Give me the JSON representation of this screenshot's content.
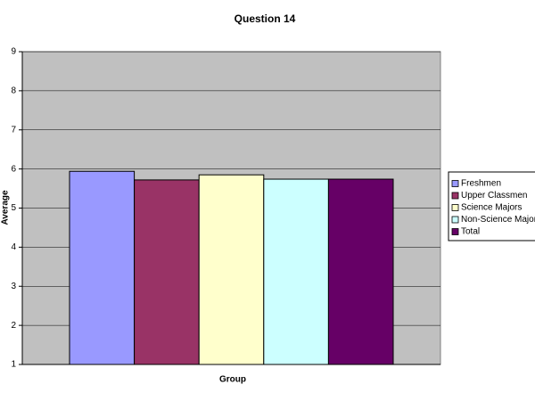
{
  "chart_data": {
    "type": "bar",
    "title": "Question 14",
    "x_label": "Group",
    "y_label": "Average",
    "categories": [
      null
    ],
    "series": [
      {
        "name": "Freshmen",
        "color": "#9999ff",
        "values": [
          5.94
        ]
      },
      {
        "name": "Upper Classmen",
        "color": "#993366",
        "values": [
          5.72
        ]
      },
      {
        "name": "Science Majors",
        "color": "#ffffcc",
        "values": [
          5.85
        ]
      },
      {
        "name": "Non-Science Majors",
        "color": "#ccffff",
        "values": [
          5.74
        ]
      },
      {
        "name": "Total",
        "color": "#660066",
        "values": [
          5.74
        ]
      }
    ],
    "ylim": [
      1,
      9
    ],
    "yticks": [
      1,
      2,
      3,
      4,
      5,
      6,
      7,
      8,
      9
    ],
    "grid": true,
    "legend": "right"
  }
}
